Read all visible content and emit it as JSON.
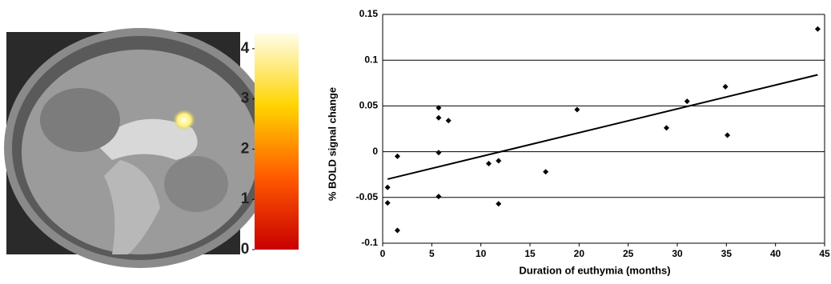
{
  "chart_data": [
    {
      "type": "colorbar",
      "ylim": [
        0,
        4.3
      ],
      "yticks": [
        0,
        1,
        2,
        3,
        4
      ],
      "colors": [
        "#c80000",
        "#ff5a00",
        "#ffd400",
        "#fffde8"
      ]
    },
    {
      "type": "scatter",
      "ylabel": "% BOLD signal change",
      "xlabel": "Duration of euthymia (months)",
      "x": [
        0.5,
        0.5,
        1.5,
        1.5,
        5.7,
        5.7,
        5.7,
        5.7,
        6.7,
        10.8,
        11.8,
        11.8,
        16.6,
        19.8,
        28.9,
        31,
        34.9,
        35.1,
        44.3
      ],
      "values": [
        -0.039,
        -0.056,
        -0.005,
        -0.086,
        0.048,
        0.037,
        -0.001,
        -0.049,
        0.034,
        -0.013,
        -0.01,
        -0.057,
        -0.022,
        0.046,
        0.026,
        0.055,
        0.071,
        0.018,
        0.134
      ],
      "color": "#000000",
      "fit": {
        "x": [
          0.5,
          44.3
        ],
        "values": [
          -0.03,
          0.084
        ]
      },
      "xlim": [
        0,
        45
      ],
      "xticks": [
        0,
        5,
        10,
        15,
        20,
        25,
        30,
        35,
        40,
        45
      ],
      "ylim": [
        -0.1,
        0.15
      ],
      "yticks": [
        -0.1,
        -0.05,
        0,
        0.05,
        0.1,
        0.15
      ],
      "grid": true
    }
  ]
}
